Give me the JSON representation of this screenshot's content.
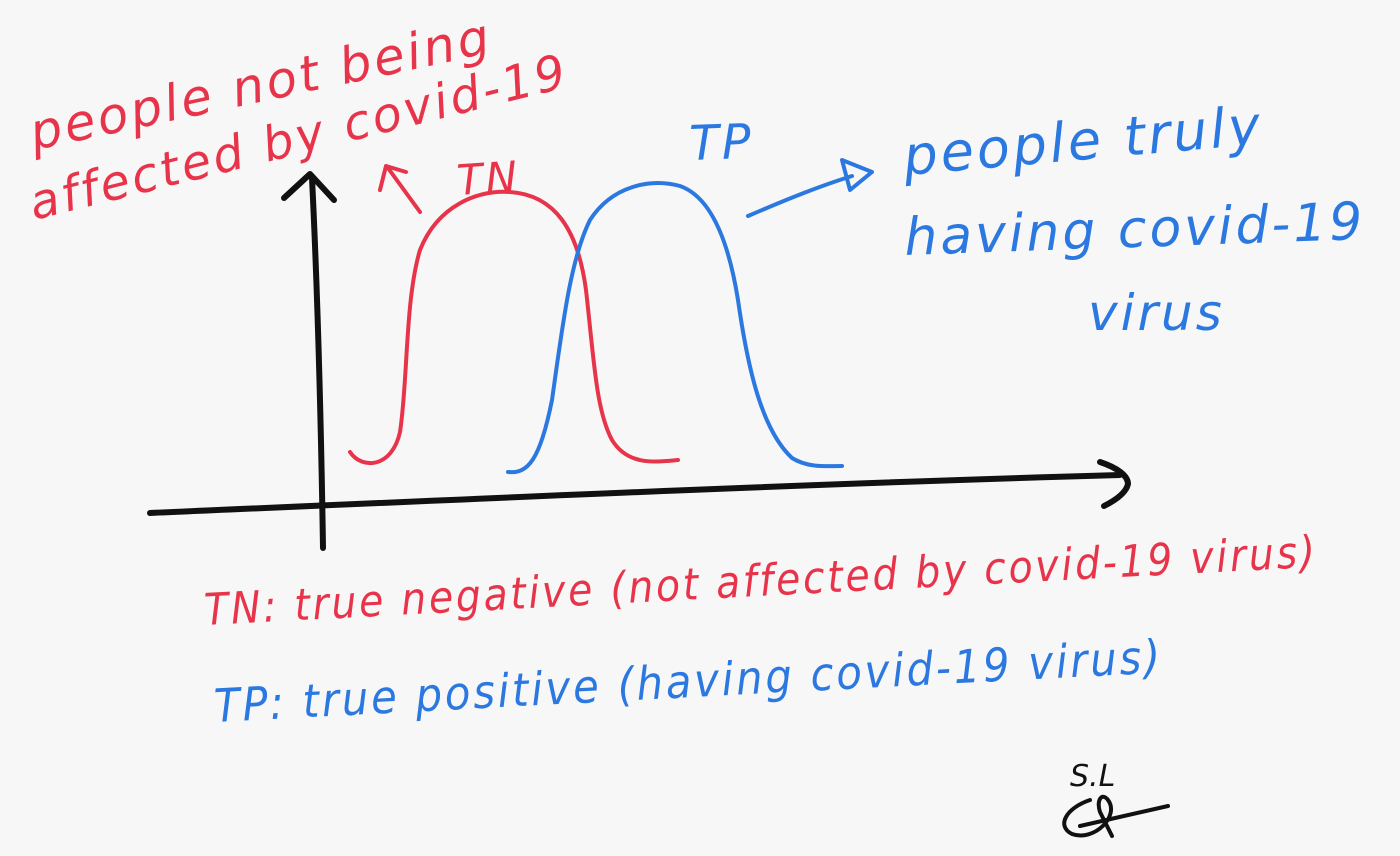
{
  "colors": {
    "tn": "#e8344a",
    "tp": "#2b78e0",
    "axes": "#111111",
    "background": "#f7f7f7"
  },
  "labels": {
    "tn_curve": "TN",
    "tp_curve": "TP",
    "tn_note_line1": "people not being",
    "tn_note_line2": "affected by covid-19",
    "tp_note_line1": "people truly",
    "tp_note_line2": "having covid-19",
    "tp_note_line3": "virus"
  },
  "legend": {
    "tn": "TN: true negative (not affected by covid-19 virus)",
    "tp": "TP: true positive (having covid-19 virus)"
  },
  "signature": "S.L"
}
